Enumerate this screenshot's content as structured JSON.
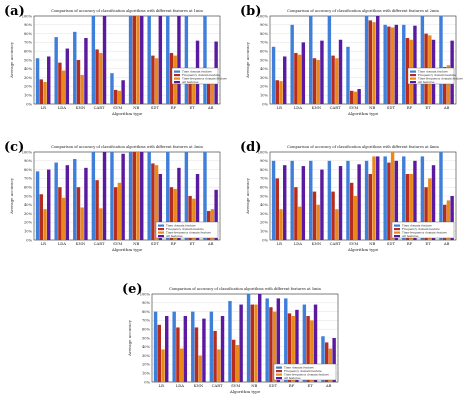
{
  "colors": {
    "s1": "#3f7fd9",
    "s2": "#b72d1d",
    "s3": "#e8891c",
    "s4": "#5a1aa0",
    "axis": "#333333",
    "grid": "#d9d9d9"
  },
  "panels": [
    {
      "letter": "(a)",
      "title": "Comparison of accuracy of classification algorithms with different features at 1min",
      "xlabel": "Algorithm type",
      "ylabel": "Average accuracy",
      "legend": [
        "Time domain feature",
        "Frequency domain feature",
        "Time-frequency domain feature",
        "All features"
      ]
    },
    {
      "letter": "(b)",
      "title": "Comparison of accuracy of classification algorithms with different features at 2min",
      "xlabel": "Algorithm type",
      "ylabel": "Average accuracy",
      "legend": [
        "Time domain feature",
        "Frequency domain feature",
        "Time-frequency domain feature",
        "All features"
      ]
    },
    {
      "letter": "(c)",
      "title": "Comparison of accuracy of classification algorithms with different features at 3min",
      "xlabel": "Algorithm type",
      "ylabel": "Average accuracy",
      "legend": [
        "Time domain feature",
        "Frequency domain feature",
        "Time-frequency domain feature",
        "All features"
      ]
    },
    {
      "letter": "(d)",
      "title": "Comparison of accuracy of classification algorithms with different features at 4min",
      "xlabel": "Algorithm type",
      "ylabel": "Average accuracy",
      "legend": [
        "Time domain feature",
        "Frequency domain feature",
        "Time-frequency domain feature",
        "All features"
      ]
    },
    {
      "letter": "(e)",
      "title": "Comparison of accuracy of classification algorithms with different features at 5min",
      "xlabel": "Algorithm type",
      "ylabel": "Average accuracy",
      "legend": [
        "Time domain feature",
        "Frequency domain feature",
        "Time-frequency domain feature",
        "All features"
      ]
    }
  ],
  "chart_data": [
    {
      "type": "bar",
      "title": "Comparison of accuracy of classification algorithms with different features at 1min",
      "xlabel": "Algorithm type",
      "ylabel": "Average accuracy",
      "ylim": [
        0,
        100
      ],
      "yticks": [
        "0%",
        "10%",
        "20%",
        "30%",
        "40%",
        "50%",
        "60%",
        "70%",
        "80%",
        "90%",
        "100%"
      ],
      "categories": [
        "LR",
        "LDA",
        "KNN",
        "CART",
        "SVM",
        "NB",
        "SDT",
        "RF",
        "ET",
        "AB"
      ],
      "legend_position": "right",
      "series": [
        {
          "name": "Time domain feature",
          "values": [
            52,
            76,
            82,
            100,
            35,
            100,
            100,
            100,
            100,
            100
          ]
        },
        {
          "name": "Frequency domain feature",
          "values": [
            28,
            47,
            50,
            62,
            16,
            100,
            55,
            58,
            38,
            36
          ]
        },
        {
          "name": "Time-frequency domain feature",
          "values": [
            25,
            38,
            33,
            58,
            15,
            100,
            52,
            55,
            35,
            38
          ]
        },
        {
          "name": "All features",
          "values": [
            54,
            63,
            75,
            100,
            27,
            100,
            100,
            100,
            72,
            71
          ]
        }
      ]
    },
    {
      "type": "bar",
      "title": "Comparison of accuracy of classification algorithms with different features at 2min",
      "xlabel": "Algorithm type",
      "ylabel": "Average accuracy",
      "ylim": [
        0,
        100
      ],
      "yticks": [
        "0%",
        "10%",
        "20%",
        "30%",
        "40%",
        "50%",
        "60%",
        "70%",
        "80%",
        "90%",
        "100%"
      ],
      "categories": [
        "LR",
        "LDA",
        "KNN",
        "CART",
        "SVM",
        "NB",
        "SDT",
        "RF",
        "ET",
        "AB"
      ],
      "legend_position": "right",
      "series": [
        {
          "name": "Time domain feature",
          "values": [
            65,
            90,
            100,
            100,
            65,
            100,
            90,
            90,
            100,
            100
          ]
        },
        {
          "name": "Frequency domain feature",
          "values": [
            27,
            58,
            52,
            55,
            15,
            95,
            88,
            75,
            80,
            42
          ]
        },
        {
          "name": "Time-frequency domain feature",
          "values": [
            26,
            56,
            50,
            52,
            14,
            93,
            87,
            73,
            78,
            44
          ]
        },
        {
          "name": "All features",
          "values": [
            54,
            70,
            72,
            73,
            17,
            100,
            90,
            89,
            73,
            72
          ]
        }
      ]
    },
    {
      "type": "bar",
      "title": "Comparison of accuracy of classification algorithms with different features at 3min",
      "xlabel": "Algorithm type",
      "ylabel": "Average accuracy",
      "ylim": [
        0,
        100
      ],
      "yticks": [
        "0%",
        "10%",
        "20%",
        "30%",
        "40%",
        "50%",
        "60%",
        "70%",
        "80%",
        "90%",
        "100%"
      ],
      "categories": [
        "LR",
        "LDA",
        "KNN",
        "CART",
        "SVM",
        "NB",
        "SDT",
        "RF",
        "ET",
        "AB"
      ],
      "legend_position": "bottom-right",
      "series": [
        {
          "name": "Time domain feature",
          "values": [
            78,
            88,
            92,
            100,
            100,
            100,
            100,
            100,
            100,
            100
          ]
        },
        {
          "name": "Frequency domain feature",
          "values": [
            52,
            60,
            60,
            68,
            60,
            100,
            87,
            60,
            50,
            33
          ]
        },
        {
          "name": "Time-frequency domain feature",
          "values": [
            35,
            48,
            37,
            36,
            65,
            100,
            85,
            58,
            47,
            35
          ]
        },
        {
          "name": "All features",
          "values": [
            80,
            85,
            82,
            100,
            98,
            100,
            75,
            82,
            75,
            57
          ]
        }
      ]
    },
    {
      "type": "bar",
      "title": "Comparison of accuracy of classification algorithms with different features at 4min",
      "xlabel": "Algorithm type",
      "ylabel": "Average accuracy",
      "ylim": [
        0,
        100
      ],
      "yticks": [
        "0%",
        "10%",
        "20%",
        "30%",
        "40%",
        "50%",
        "60%",
        "70%",
        "80%",
        "90%",
        "100%"
      ],
      "categories": [
        "LR",
        "LDA",
        "KNN",
        "CART",
        "SVM",
        "NB",
        "SDT",
        "RF",
        "ET",
        "AB"
      ],
      "legend_position": "bottom-right",
      "series": [
        {
          "name": "Time domain feature",
          "values": [
            90,
            90,
            90,
            90,
            90,
            90,
            95,
            95,
            95,
            100
          ]
        },
        {
          "name": "Frequency domain feature",
          "values": [
            70,
            60,
            55,
            55,
            65,
            75,
            88,
            75,
            60,
            40
          ]
        },
        {
          "name": "Time-frequency domain feature",
          "values": [
            35,
            38,
            40,
            35,
            50,
            95,
            100,
            75,
            70,
            45
          ]
        },
        {
          "name": "All features",
          "values": [
            85,
            84,
            80,
            84,
            86,
            95,
            90,
            90,
            85,
            50
          ]
        }
      ]
    },
    {
      "type": "bar",
      "title": "Comparison of accuracy of classification algorithms with different features at 5min",
      "xlabel": "Algorithm type",
      "ylabel": "Average accuracy",
      "ylim": [
        0,
        100
      ],
      "yticks": [
        "0%",
        "10%",
        "20%",
        "30%",
        "40%",
        "50%",
        "60%",
        "70%",
        "80%",
        "90%",
        "100%"
      ],
      "categories": [
        "LR",
        "LDA",
        "KNN",
        "CART",
        "SVM",
        "NB",
        "SDT",
        "RF",
        "ET",
        "AB"
      ],
      "legend_position": "bottom-right",
      "series": [
        {
          "name": "Time domain feature",
          "values": [
            80,
            80,
            80,
            80,
            92,
            100,
            95,
            95,
            88,
            52
          ]
        },
        {
          "name": "Frequency domain feature",
          "values": [
            65,
            62,
            62,
            58,
            48,
            88,
            85,
            78,
            75,
            45
          ]
        },
        {
          "name": "Time-frequency domain feature",
          "values": [
            37,
            38,
            30,
            37,
            42,
            88,
            80,
            75,
            70,
            38
          ]
        },
        {
          "name": "All features",
          "values": [
            75,
            75,
            72,
            75,
            88,
            100,
            95,
            82,
            88,
            50
          ]
        }
      ]
    }
  ]
}
